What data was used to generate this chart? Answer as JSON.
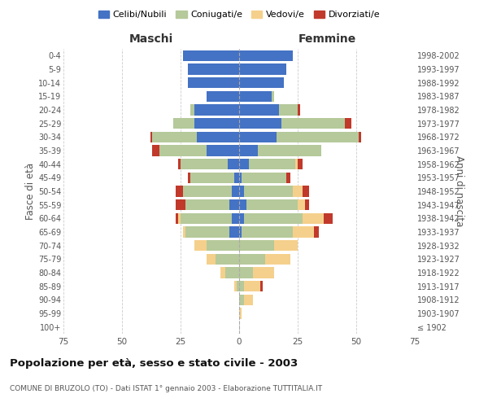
{
  "age_groups": [
    "100+",
    "95-99",
    "90-94",
    "85-89",
    "80-84",
    "75-79",
    "70-74",
    "65-69",
    "60-64",
    "55-59",
    "50-54",
    "45-49",
    "40-44",
    "35-39",
    "30-34",
    "25-29",
    "20-24",
    "15-19",
    "10-14",
    "5-9",
    "0-4"
  ],
  "birth_years": [
    "≤ 1902",
    "1903-1907",
    "1908-1912",
    "1913-1917",
    "1918-1922",
    "1923-1927",
    "1928-1932",
    "1933-1937",
    "1938-1942",
    "1943-1947",
    "1948-1952",
    "1953-1957",
    "1958-1962",
    "1963-1967",
    "1968-1972",
    "1973-1977",
    "1978-1982",
    "1983-1987",
    "1988-1992",
    "1993-1997",
    "1998-2002"
  ],
  "males": {
    "celibe": [
      0,
      0,
      0,
      0,
      0,
      0,
      0,
      4,
      3,
      4,
      3,
      2,
      5,
      14,
      18,
      19,
      19,
      14,
      22,
      22,
      24
    ],
    "coniugato": [
      0,
      0,
      0,
      1,
      6,
      10,
      14,
      19,
      22,
      19,
      21,
      19,
      20,
      20,
      19,
      9,
      2,
      0,
      0,
      0,
      0
    ],
    "vedovo": [
      0,
      0,
      0,
      1,
      2,
      4,
      5,
      1,
      1,
      0,
      0,
      0,
      0,
      0,
      0,
      0,
      0,
      0,
      0,
      0,
      0
    ],
    "divorziato": [
      0,
      0,
      0,
      0,
      0,
      0,
      0,
      0,
      1,
      4,
      3,
      1,
      1,
      3,
      1,
      0,
      0,
      0,
      0,
      0,
      0
    ]
  },
  "females": {
    "nubile": [
      0,
      0,
      0,
      0,
      0,
      0,
      0,
      1,
      2,
      3,
      2,
      1,
      4,
      8,
      16,
      18,
      17,
      14,
      19,
      20,
      23
    ],
    "coniugata": [
      0,
      0,
      2,
      2,
      6,
      11,
      15,
      22,
      25,
      22,
      21,
      19,
      20,
      27,
      35,
      27,
      8,
      1,
      0,
      0,
      0
    ],
    "vedova": [
      0,
      1,
      4,
      7,
      9,
      11,
      10,
      9,
      9,
      3,
      4,
      0,
      1,
      0,
      0,
      0,
      0,
      0,
      0,
      0,
      0
    ],
    "divorziata": [
      0,
      0,
      0,
      1,
      0,
      0,
      0,
      2,
      4,
      2,
      3,
      2,
      2,
      0,
      1,
      3,
      1,
      0,
      0,
      0,
      0
    ]
  },
  "xlim": 75,
  "colors": {
    "celibe": "#4472c4",
    "coniugato": "#b5c99a",
    "vedovo": "#f5d08c",
    "divorziato": "#c0392b"
  },
  "title": "Popolazione per età, sesso e stato civile - 2003",
  "subtitle": "COMUNE DI BRUZOLO (TO) - Dati ISTAT 1° gennaio 2003 - Elaborazione TUTTITALIA.IT",
  "ylabel_left": "Fasce di età",
  "ylabel_right": "Anni di nascita",
  "xlabel_left": "Maschi",
  "xlabel_right": "Femmine",
  "legend_labels": [
    "Celibi/Nubili",
    "Coniugati/e",
    "Vedovi/e",
    "Divorziati/e"
  ],
  "background_color": "#ffffff",
  "bar_height": 0.8
}
